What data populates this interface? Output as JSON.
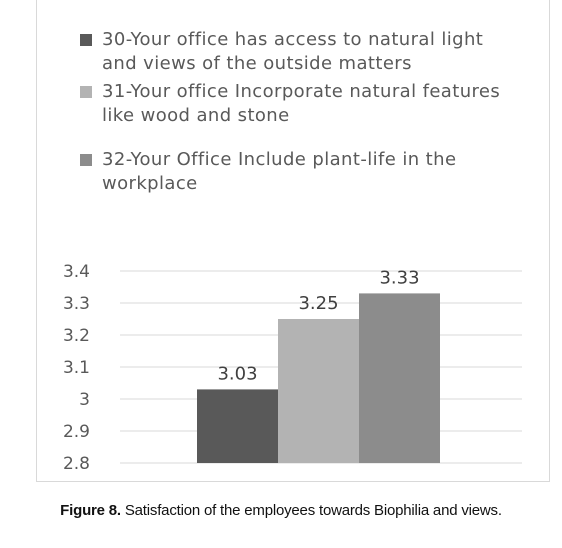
{
  "chart_data": {
    "type": "bar",
    "categories": [
      ""
    ],
    "series": [
      {
        "name": "30-Your office has access to natural light and views of the outside matters",
        "values": [
          3.03
        ],
        "color": "#595959"
      },
      {
        "name": "31-Your office Incorporate natural features like wood and stone",
        "values": [
          3.25
        ],
        "color": "#b3b3b3"
      },
      {
        "name": "32-Your Office Include plant-life in the workplace",
        "values": [
          3.33
        ],
        "color": "#8c8c8c"
      }
    ],
    "data_labels": [
      "3.03",
      "3.25",
      "3.33"
    ],
    "yticks": [
      "2.8",
      "2.9",
      "3",
      "3.1",
      "3.2",
      "3.3",
      "3.4"
    ],
    "ylim": [
      2.8,
      3.4
    ],
    "grid": true,
    "legend_position": "top",
    "title": "",
    "xlabel": "",
    "ylabel": ""
  },
  "caption": {
    "label": "Figure 8.",
    "text": " Satisfaction of the employees towards Biophilia and views."
  }
}
